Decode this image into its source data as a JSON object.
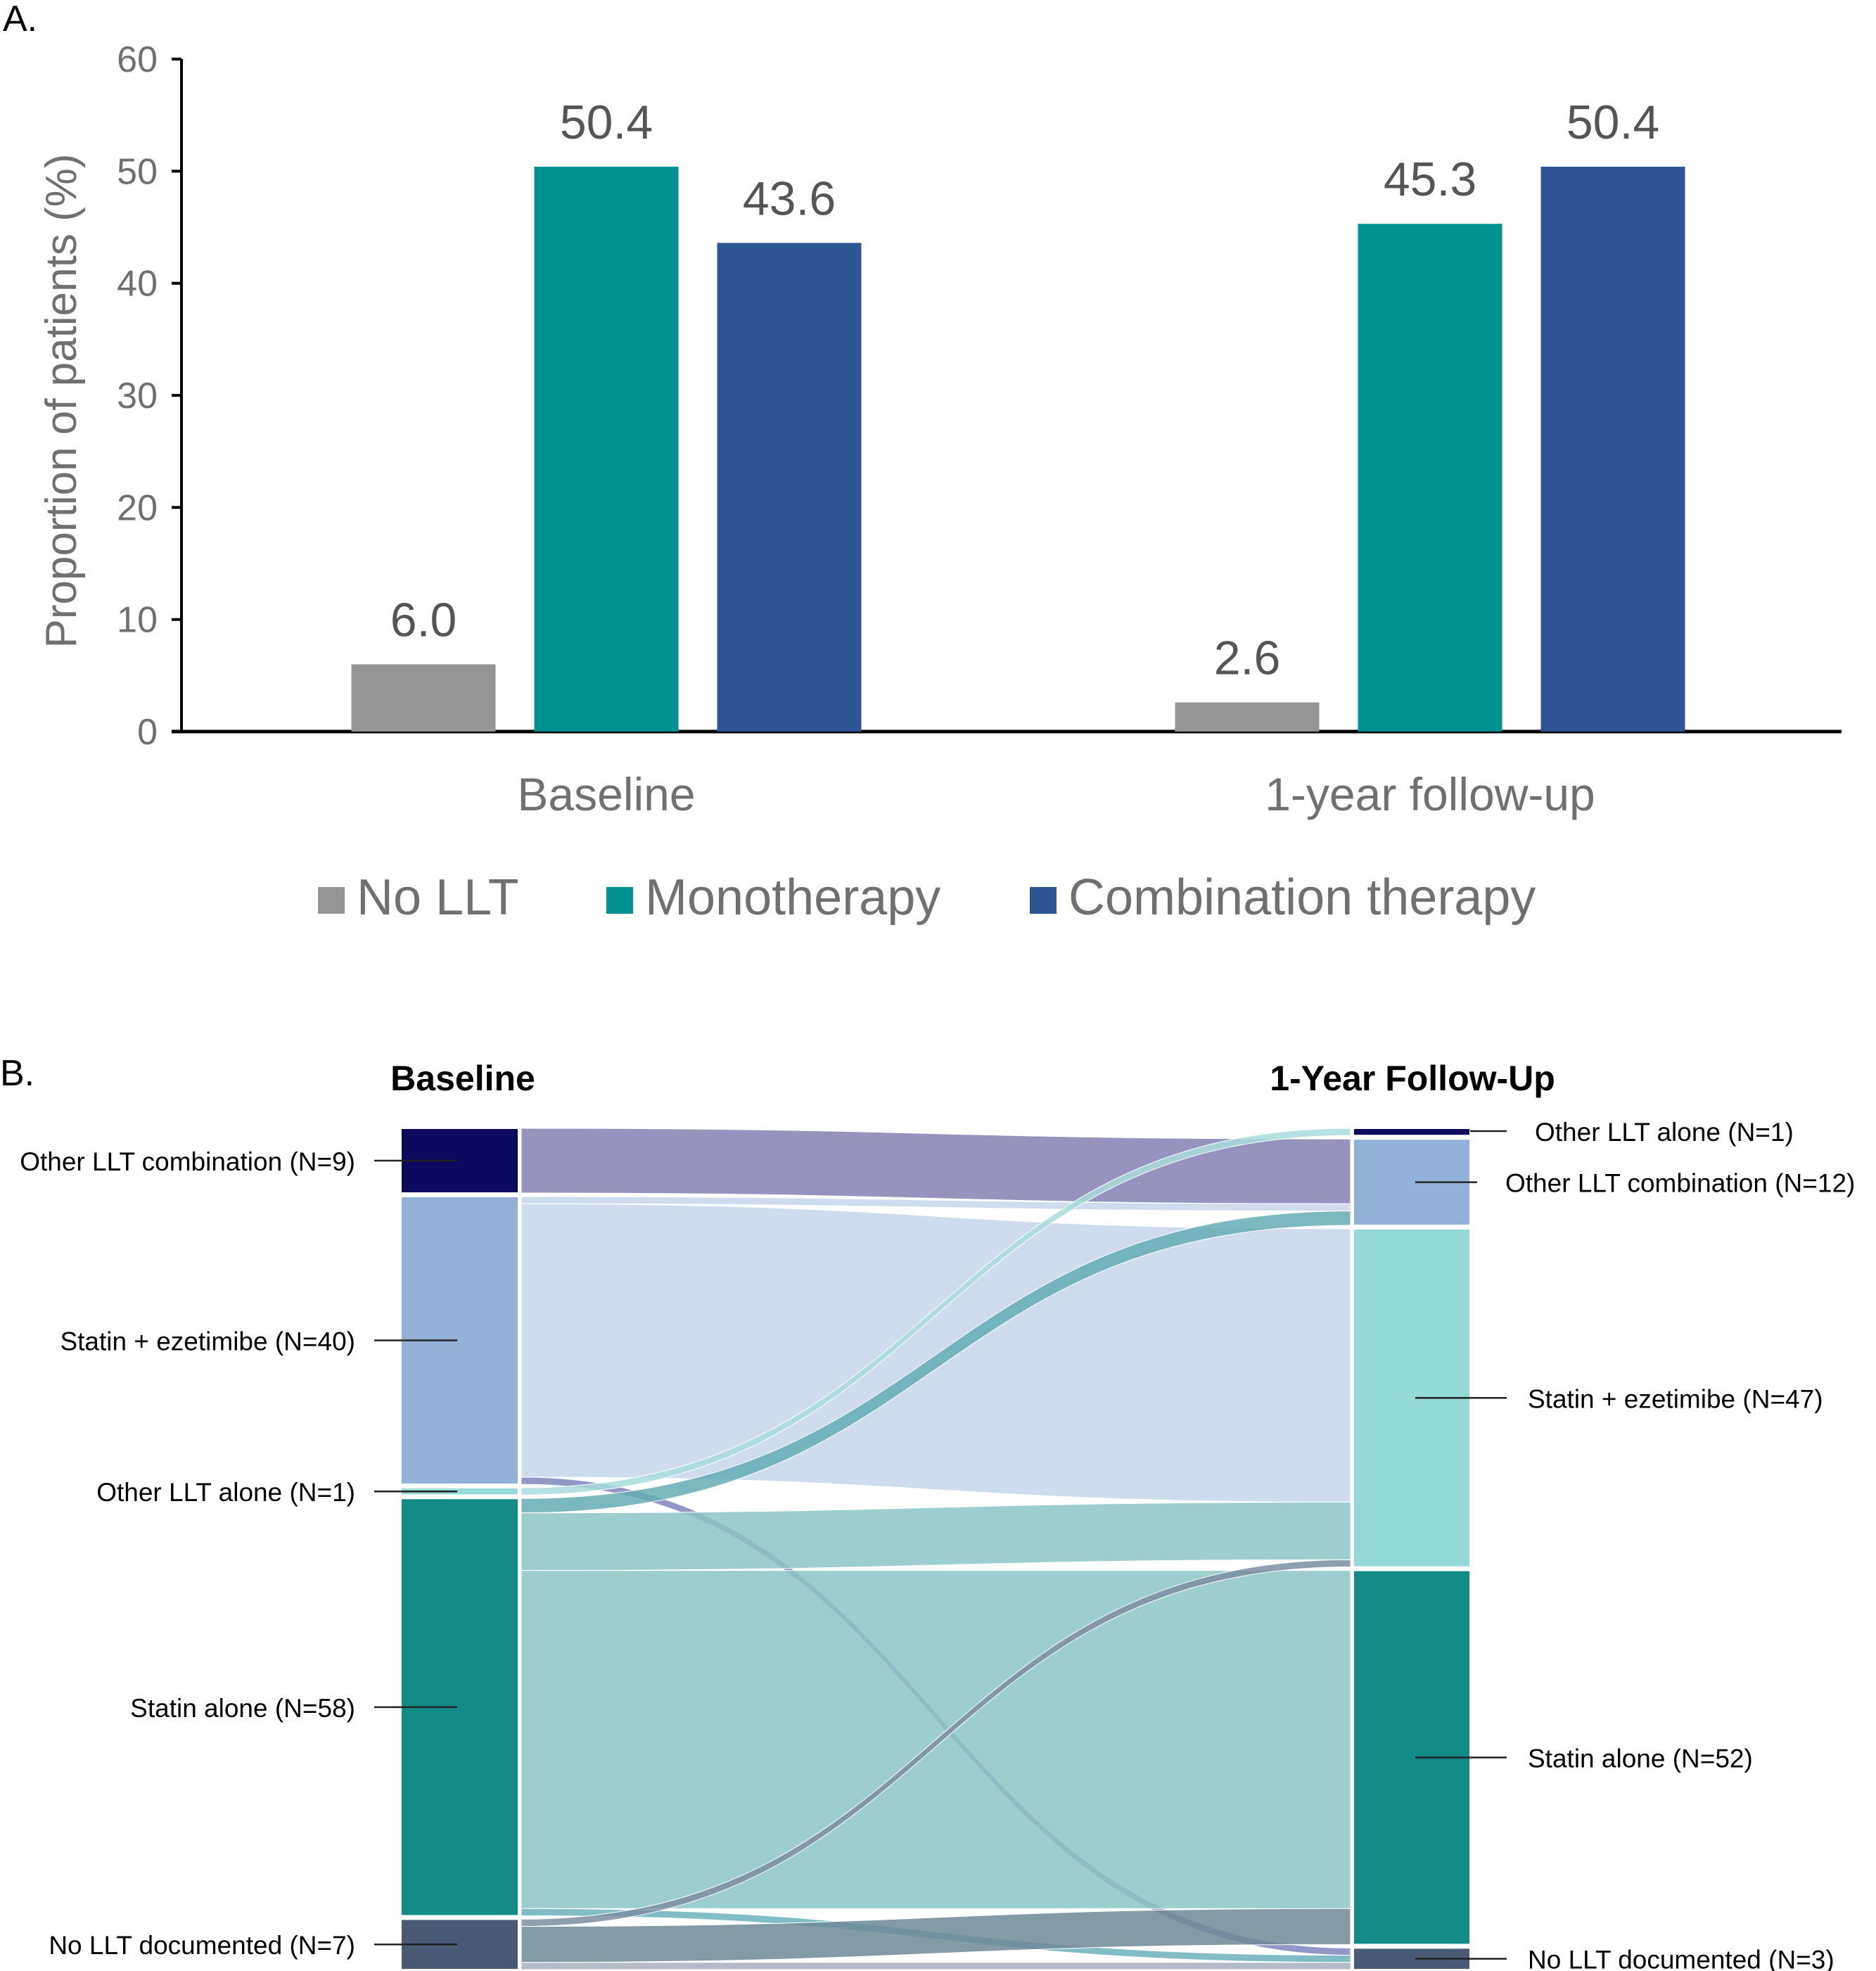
{
  "chart_data": [
    {
      "panel": "A.",
      "type": "bar",
      "title": "",
      "xlabel": "",
      "ylabel": "Proportion of patients (%)",
      "ylim": [
        0,
        60
      ],
      "yticks": [
        0,
        10,
        20,
        30,
        40,
        50,
        60
      ],
      "grid": false,
      "legend_position": "bottom",
      "categories": [
        "Baseline",
        "1-year follow-up"
      ],
      "series": [
        {
          "name": "No LLT",
          "color": "#959595",
          "values": [
            6.0,
            2.6
          ],
          "labels": [
            "6.0",
            "2.6"
          ]
        },
        {
          "name": "Monotherapy",
          "color": "#009190",
          "values": [
            50.4,
            45.3
          ],
          "labels": [
            "50.4",
            "45.3"
          ]
        },
        {
          "name": "Combination therapy",
          "color": "#2f5594",
          "values": [
            43.6,
            50.4
          ],
          "labels": [
            "43.6",
            "50.4"
          ]
        }
      ]
    },
    {
      "panel": "B.",
      "type": "sankey",
      "left_title": "Baseline",
      "right_title": "1-Year Follow-Up",
      "left_nodes": [
        {
          "id": "b_combo",
          "label": "Other LLT combination (N=9)",
          "value": 9,
          "color": "#0b0a5f"
        },
        {
          "id": "b_se",
          "label": "Statin + ezetimibe (N=40)",
          "value": 40,
          "color": "#92b0d8"
        },
        {
          "id": "b_alone",
          "label": "Other LLT alone (N=1)",
          "value": 1,
          "color": "#93d9d6"
        },
        {
          "id": "b_statin",
          "label": "Statin alone (N=58)",
          "value": 58,
          "color": "#138b87"
        },
        {
          "id": "b_none",
          "label": "No LLT documented (N=7)",
          "value": 7,
          "color": "#4a5a74"
        }
      ],
      "right_nodes": [
        {
          "id": "f_alone",
          "label": "Other LLT alone (N=1)",
          "value": 1,
          "color": "#0b0a5f"
        },
        {
          "id": "f_combo",
          "label": "Other LLT combination (N=12)",
          "value": 12,
          "color": "#92b0d8"
        },
        {
          "id": "f_se",
          "label": "Statin + ezetimibe (N=47)",
          "value": 47,
          "color": "#93d9d6"
        },
        {
          "id": "f_statin",
          "label": "Statin alone (N=52)",
          "value": 52,
          "color": "#138b87"
        },
        {
          "id": "f_none",
          "label": "No LLT documented (N=3)",
          "value": 3,
          "color": "#4a5a74"
        }
      ],
      "flows": [
        {
          "from": "b_combo",
          "to": "f_combo",
          "value": 9,
          "color": "#8481b3"
        },
        {
          "from": "b_se",
          "to": "f_combo",
          "value": 1,
          "color": "#c5d6eb"
        },
        {
          "from": "b_se",
          "to": "f_se",
          "value": 38,
          "color": "#c5d6eb"
        },
        {
          "from": "b_se",
          "to": "f_none",
          "value": 1,
          "color": "#7f86bb"
        },
        {
          "from": "b_alone",
          "to": "f_alone",
          "value": 1,
          "color": "#a8dcdc"
        },
        {
          "from": "b_statin",
          "to": "f_combo",
          "value": 2,
          "color": "#64adb3"
        },
        {
          "from": "b_statin",
          "to": "f_se",
          "value": 8,
          "color": "#8ac5c3"
        },
        {
          "from": "b_statin",
          "to": "f_statin",
          "value": 47,
          "color": "#8ac5c3"
        },
        {
          "from": "b_statin",
          "to": "f_none",
          "value": 1,
          "color": "#6bb1bb"
        },
        {
          "from": "b_none",
          "to": "f_se",
          "value": 1,
          "color": "#7d8ea2"
        },
        {
          "from": "b_none",
          "to": "f_statin",
          "value": 5,
          "color": "#6f8a96"
        },
        {
          "from": "b_none",
          "to": "f_none",
          "value": 1,
          "color": "#a9b0bd"
        }
      ]
    }
  ]
}
